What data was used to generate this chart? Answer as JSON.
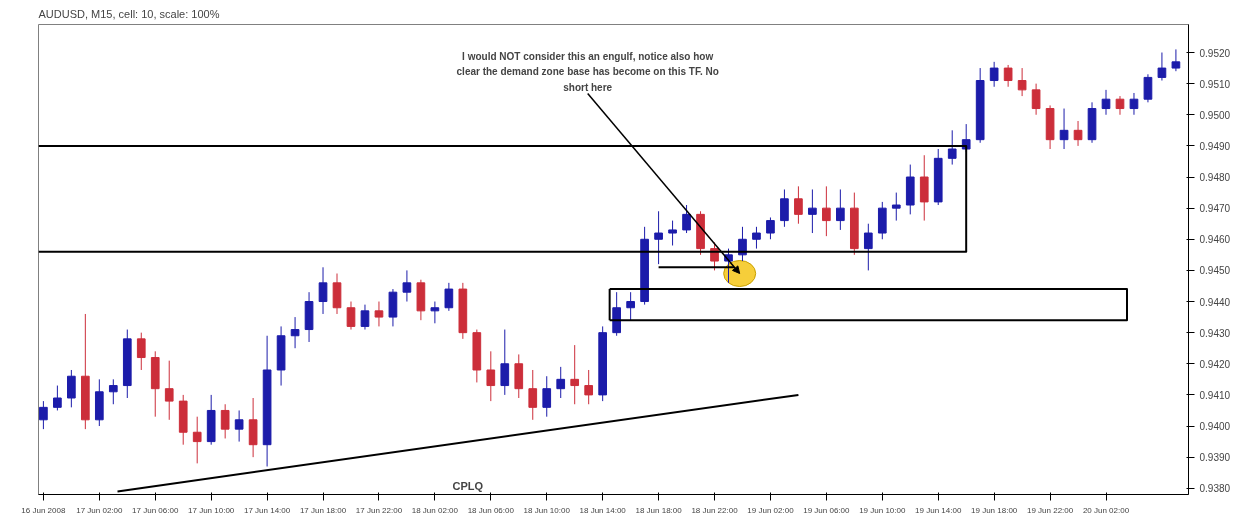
{
  "chart_data": {
    "type": "candlestick",
    "title": "AUDUSD, M15, cell: 10, scale: 100%",
    "x": [
      "2008-06-16T22:00",
      "2008-06-16T23:00",
      "2008-06-17T00:00",
      "2008-06-17T01:00",
      "2008-06-17T02:00",
      "2008-06-17T03:00",
      "2008-06-17T04:00",
      "2008-06-17T05:00",
      "2008-06-17T06:00",
      "2008-06-17T07:00",
      "2008-06-17T08:00",
      "2008-06-17T09:00",
      "2008-06-17T10:00",
      "2008-06-17T11:00",
      "2008-06-17T12:00",
      "2008-06-17T13:00",
      "2008-06-17T14:00",
      "2008-06-17T15:00",
      "2008-06-17T16:00",
      "2008-06-17T17:00",
      "2008-06-17T18:00",
      "2008-06-17T19:00",
      "2008-06-17T20:00",
      "2008-06-17T21:00",
      "2008-06-17T22:00",
      "2008-06-17T23:00",
      "2008-06-18T00:00",
      "2008-06-18T01:00",
      "2008-06-18T02:00",
      "2008-06-18T03:00",
      "2008-06-18T04:00",
      "2008-06-18T05:00",
      "2008-06-18T06:00",
      "2008-06-18T07:00",
      "2008-06-18T08:00",
      "2008-06-18T09:00",
      "2008-06-18T10:00",
      "2008-06-18T11:00",
      "2008-06-18T12:00",
      "2008-06-18T13:00",
      "2008-06-18T14:00",
      "2008-06-18T15:00",
      "2008-06-18T16:00",
      "2008-06-18T17:00",
      "2008-06-18T18:00",
      "2008-06-18T19:00",
      "2008-06-18T20:00",
      "2008-06-18T21:00",
      "2008-06-18T22:00",
      "2008-06-18T23:00",
      "2008-06-19T00:00",
      "2008-06-19T01:00",
      "2008-06-19T02:00",
      "2008-06-19T03:00",
      "2008-06-19T04:00",
      "2008-06-19T05:00",
      "2008-06-19T06:00",
      "2008-06-19T07:00",
      "2008-06-19T08:00",
      "2008-06-19T09:00",
      "2008-06-19T10:00",
      "2008-06-19T11:00",
      "2008-06-19T12:00",
      "2008-06-19T13:00",
      "2008-06-19T14:00",
      "2008-06-19T15:00",
      "2008-06-19T16:00",
      "2008-06-19T17:00",
      "2008-06-19T18:00",
      "2008-06-19T19:00",
      "2008-06-19T20:00",
      "2008-06-19T21:00",
      "2008-06-19T22:00",
      "2008-06-19T23:00",
      "2008-06-20T00:00",
      "2008-06-20T01:00",
      "2008-06-20T02:00",
      "2008-06-20T03:00",
      "2008-06-20T04:00",
      "2008-06-20T05:00",
      "2008-06-20T06:00",
      "2008-06-20T07:00"
    ],
    "ohlc": [
      [
        0.9402,
        0.9408,
        0.9399,
        0.9406
      ],
      [
        0.9406,
        0.9413,
        0.9405,
        0.9409
      ],
      [
        0.9409,
        0.9418,
        0.9406,
        0.9416
      ],
      [
        0.9416,
        0.9436,
        0.9399,
        0.9402
      ],
      [
        0.9402,
        0.9415,
        0.94,
        0.9411
      ],
      [
        0.9411,
        0.9415,
        0.9407,
        0.9413
      ],
      [
        0.9413,
        0.9431,
        0.9409,
        0.9428
      ],
      [
        0.9428,
        0.943,
        0.9418,
        0.9422
      ],
      [
        0.9422,
        0.9424,
        0.9403,
        0.9412
      ],
      [
        0.9412,
        0.9421,
        0.9402,
        0.9408
      ],
      [
        0.9408,
        0.941,
        0.9394,
        0.9398
      ],
      [
        0.9398,
        0.9403,
        0.9388,
        0.9395
      ],
      [
        0.9395,
        0.941,
        0.9394,
        0.9405
      ],
      [
        0.9405,
        0.9407,
        0.9396,
        0.9399
      ],
      [
        0.9399,
        0.9405,
        0.9395,
        0.9402
      ],
      [
        0.9402,
        0.9409,
        0.939,
        0.9394
      ],
      [
        0.9394,
        0.9429,
        0.9387,
        0.9418
      ],
      [
        0.9418,
        0.9432,
        0.9413,
        0.9429
      ],
      [
        0.9429,
        0.9435,
        0.9425,
        0.9431
      ],
      [
        0.9431,
        0.9443,
        0.9427,
        0.944
      ],
      [
        0.944,
        0.9451,
        0.9436,
        0.9446
      ],
      [
        0.9446,
        0.9449,
        0.9436,
        0.9438
      ],
      [
        0.9438,
        0.944,
        0.9431,
        0.9432
      ],
      [
        0.9432,
        0.9439,
        0.9431,
        0.9437
      ],
      [
        0.9437,
        0.944,
        0.9432,
        0.9435
      ],
      [
        0.9435,
        0.9444,
        0.9432,
        0.9443
      ],
      [
        0.9443,
        0.945,
        0.944,
        0.9446
      ],
      [
        0.9446,
        0.9447,
        0.9434,
        0.9437
      ],
      [
        0.9437,
        0.944,
        0.9433,
        0.9438
      ],
      [
        0.9438,
        0.9446,
        0.9437,
        0.9444
      ],
      [
        0.9444,
        0.9446,
        0.9428,
        0.943
      ],
      [
        0.943,
        0.9431,
        0.9414,
        0.9418
      ],
      [
        0.9418,
        0.9424,
        0.9408,
        0.9413
      ],
      [
        0.9413,
        0.9431,
        0.941,
        0.942
      ],
      [
        0.942,
        0.9423,
        0.9409,
        0.9412
      ],
      [
        0.9412,
        0.9418,
        0.9402,
        0.9406
      ],
      [
        0.9406,
        0.9416,
        0.9403,
        0.9412
      ],
      [
        0.9412,
        0.9419,
        0.9409,
        0.9415
      ],
      [
        0.9415,
        0.9426,
        0.9407,
        0.9413
      ],
      [
        0.9413,
        0.9418,
        0.9407,
        0.941
      ],
      [
        0.941,
        0.9432,
        0.9408,
        0.943
      ],
      [
        0.943,
        0.9443,
        0.9429,
        0.9438
      ],
      [
        0.9438,
        0.9443,
        0.9434,
        0.944
      ],
      [
        0.944,
        0.9464,
        0.9439,
        0.946
      ],
      [
        0.946,
        0.9469,
        0.9452,
        0.9462
      ],
      [
        0.9462,
        0.9466,
        0.9458,
        0.9463
      ],
      [
        0.9463,
        0.9471,
        0.9462,
        0.9468
      ],
      [
        0.9468,
        0.9469,
        0.9455,
        0.9457
      ],
      [
        0.9457,
        0.9459,
        0.945,
        0.9453
      ],
      [
        0.9453,
        0.9457,
        0.9446,
        0.9455
      ],
      [
        0.9455,
        0.9464,
        0.9453,
        0.946
      ],
      [
        0.946,
        0.9464,
        0.9457,
        0.9462
      ],
      [
        0.9462,
        0.9467,
        0.946,
        0.9466
      ],
      [
        0.9466,
        0.9476,
        0.9464,
        0.9473
      ],
      [
        0.9473,
        0.9477,
        0.9465,
        0.9468
      ],
      [
        0.9468,
        0.9476,
        0.9462,
        0.947
      ],
      [
        0.947,
        0.9477,
        0.9461,
        0.9466
      ],
      [
        0.9466,
        0.9476,
        0.9463,
        0.947
      ],
      [
        0.947,
        0.9475,
        0.9455,
        0.9457
      ],
      [
        0.9457,
        0.9465,
        0.945,
        0.9462
      ],
      [
        0.9462,
        0.9472,
        0.946,
        0.947
      ],
      [
        0.947,
        0.9475,
        0.9466,
        0.9471
      ],
      [
        0.9471,
        0.9484,
        0.9468,
        0.948
      ],
      [
        0.948,
        0.9487,
        0.9466,
        0.9472
      ],
      [
        0.9472,
        0.9489,
        0.9471,
        0.9486
      ],
      [
        0.9486,
        0.9495,
        0.9484,
        0.9489
      ],
      [
        0.9489,
        0.9497,
        0.9488,
        0.9492
      ],
      [
        0.9492,
        0.9515,
        0.9491,
        0.9511
      ],
      [
        0.9511,
        0.9517,
        0.9509,
        0.9515
      ],
      [
        0.9515,
        0.9516,
        0.9509,
        0.9511
      ],
      [
        0.9511,
        0.9515,
        0.9506,
        0.9508
      ],
      [
        0.9508,
        0.951,
        0.95,
        0.9502
      ],
      [
        0.9502,
        0.9503,
        0.9489,
        0.9492
      ],
      [
        0.9492,
        0.9502,
        0.9489,
        0.9495
      ],
      [
        0.9495,
        0.9498,
        0.949,
        0.9492
      ],
      [
        0.9492,
        0.9504,
        0.9491,
        0.9502
      ],
      [
        0.9502,
        0.9508,
        0.95,
        0.9505
      ],
      [
        0.9505,
        0.9506,
        0.95,
        0.9502
      ],
      [
        0.9502,
        0.9507,
        0.95,
        0.9505
      ],
      [
        0.9505,
        0.9513,
        0.9504,
        0.9512
      ],
      [
        0.9512,
        0.952,
        0.9511,
        0.9515
      ],
      [
        0.9515,
        0.9521,
        0.9514,
        0.9517
      ]
    ],
    "colors": [
      "#1c1caa",
      "#1c1caa",
      "#1c1caa",
      "#cc2e3a",
      "#1c1caa",
      "#1c1caa",
      "#1c1caa",
      "#cc2e3a",
      "#cc2e3a",
      "#cc2e3a",
      "#cc2e3a",
      "#cc2e3a",
      "#1c1caa",
      "#cc2e3a",
      "#1c1caa",
      "#cc2e3a",
      "#1c1caa",
      "#1c1caa",
      "#1c1caa",
      "#1c1caa",
      "#1c1caa",
      "#cc2e3a",
      "#cc2e3a",
      "#1c1caa",
      "#cc2e3a",
      "#1c1caa",
      "#1c1caa",
      "#cc2e3a",
      "#1c1caa",
      "#1c1caa",
      "#cc2e3a",
      "#cc2e3a",
      "#cc2e3a",
      "#1c1caa",
      "#cc2e3a",
      "#cc2e3a",
      "#1c1caa",
      "#1c1caa",
      "#cc2e3a",
      "#cc2e3a",
      "#1c1caa",
      "#1c1caa",
      "#1c1caa",
      "#1c1caa",
      "#1c1caa",
      "#1c1caa",
      "#1c1caa",
      "#cc2e3a",
      "#cc2e3a",
      "#1c1caa",
      "#1c1caa",
      "#1c1caa",
      "#1c1caa",
      "#1c1caa",
      "#cc2e3a",
      "#1c1caa",
      "#cc2e3a",
      "#1c1caa",
      "#cc2e3a",
      "#1c1caa",
      "#1c1caa",
      "#1c1caa",
      "#1c1caa",
      "#cc2e3a",
      "#1c1caa",
      "#1c1caa",
      "#1c1caa",
      "#1c1caa",
      "#1c1caa",
      "#cc2e3a",
      "#cc2e3a",
      "#cc2e3a",
      "#cc2e3a",
      "#1c1caa",
      "#cc2e3a",
      "#1c1caa",
      "#1c1caa",
      "#cc2e3a",
      "#1c1caa",
      "#1c1caa",
      "#1c1caa",
      "#1c1caa"
    ],
    "series": [
      {
        "type": "line",
        "color": "#000000",
        "x": [
          "2008-06-16T21:39",
          "2008-06-19T16:00",
          "2008-06-19T16:00",
          "2008-06-16T21:39"
        ],
        "values": [
          0.949,
          0.949,
          0.9456,
          0.9456
        ]
      },
      {
        "type": "line",
        "color": "#000000",
        "x": [
          "2008-06-18T14:30",
          "2008-06-20T03:30",
          "2008-06-20T03:30",
          "2008-06-18T14:30"
        ],
        "values": [
          0.9444,
          0.9444,
          0.9434,
          0.9434
        ]
      },
      {
        "type": "line",
        "color": "#000000",
        "x": [
          "2008-06-18T14:30",
          "2008-06-18T14:30"
        ],
        "values": [
          0.9434,
          0.9444
        ]
      },
      {
        "type": "line",
        "color": "#000000",
        "x": [
          "2008-06-18T18:00",
          "2008-06-18T23:24"
        ],
        "values": [
          0.9451,
          0.9451
        ]
      },
      {
        "type": "line",
        "color": "#000000",
        "x": [
          "2008-06-17T03:18",
          "2008-06-19T04:00"
        ],
        "values": [
          0.9379,
          0.941
        ]
      }
    ],
    "xlim": [
      "2008-06-16T21:39",
      "2008-06-20T07:54"
    ],
    "ylim": [
      0.9378,
      0.9529
    ],
    "xticks": [
      {
        "value": "2008-06-16T22:00",
        "label": "16 Jun 2008"
      },
      {
        "value": "2008-06-17T02:00",
        "label": "17 Jun 02:00"
      },
      {
        "value": "2008-06-17T06:00",
        "label": "17 Jun 06:00"
      },
      {
        "value": "2008-06-17T10:00",
        "label": "17 Jun 10:00"
      },
      {
        "value": "2008-06-17T14:00",
        "label": "17 Jun 14:00"
      },
      {
        "value": "2008-06-17T18:00",
        "label": "17 Jun 18:00"
      },
      {
        "value": "2008-06-17T22:00",
        "label": "17 Jun 22:00"
      },
      {
        "value": "2008-06-18T02:00",
        "label": "18 Jun 02:00"
      },
      {
        "value": "2008-06-18T06:00",
        "label": "18 Jun 06:00"
      },
      {
        "value": "2008-06-18T10:00",
        "label": "18 Jun 10:00"
      },
      {
        "value": "2008-06-18T14:00",
        "label": "18 Jun 14:00"
      },
      {
        "value": "2008-06-18T18:00",
        "label": "18 Jun 18:00"
      },
      {
        "value": "2008-06-18T22:00",
        "label": "18 Jun 22:00"
      },
      {
        "value": "2008-06-19T02:00",
        "label": "19 Jun 02:00"
      },
      {
        "value": "2008-06-19T06:00",
        "label": "19 Jun 06:00"
      },
      {
        "value": "2008-06-19T10:00",
        "label": "19 Jun 10:00"
      },
      {
        "value": "2008-06-19T14:00",
        "label": "19 Jun 14:00"
      },
      {
        "value": "2008-06-19T18:00",
        "label": "19 Jun 18:00"
      },
      {
        "value": "2008-06-19T22:00",
        "label": "19 Jun 22:00"
      },
      {
        "value": "2008-06-20T02:00",
        "label": "20 Jun 02:00"
      }
    ],
    "yticks": [
      {
        "value": 0.938,
        "label": "0.9380"
      },
      {
        "value": 0.939,
        "label": "0.9390"
      },
      {
        "value": 0.94,
        "label": "0.9400"
      },
      {
        "value": 0.941,
        "label": "0.9410"
      },
      {
        "value": 0.942,
        "label": "0.9420"
      },
      {
        "value": 0.943,
        "label": "0.9430"
      },
      {
        "value": 0.944,
        "label": "0.9440"
      },
      {
        "value": 0.945,
        "label": "0.9450"
      },
      {
        "value": 0.946,
        "label": "0.9460"
      },
      {
        "value": 0.947,
        "label": "0.9470"
      },
      {
        "value": 0.948,
        "label": "0.9480"
      },
      {
        "value": 0.949,
        "label": "0.9490"
      },
      {
        "value": 0.95,
        "label": "0.9500"
      },
      {
        "value": 0.951,
        "label": "0.9510"
      },
      {
        "value": 0.952,
        "label": "0.9520"
      }
    ],
    "annotations": [
      {
        "text": "I would NOT consider this an engulf, notice also how clear the demand zone base has become on this TF. No short here",
        "x": "2008-06-18T23:48",
        "y": 0.9449
      },
      "CPLQ"
    ]
  }
}
